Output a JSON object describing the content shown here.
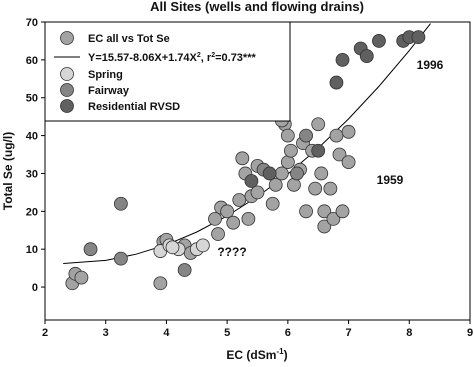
{
  "chart_data": {
    "type": "scatter",
    "title": "All Sites (wells and flowing drains)",
    "xlabel": [
      "EC (dSm",
      "-1",
      ")"
    ],
    "ylabel": "Total Se (ug/l)",
    "xlim": [
      2,
      9
    ],
    "ylim": [
      -8.7,
      70
    ],
    "xticks": [
      2,
      3,
      4,
      5,
      6,
      7,
      8,
      9
    ],
    "yticks": [
      0,
      10,
      20,
      30,
      40,
      50,
      60,
      70
    ],
    "series": [
      {
        "name": "EC all vs Tot Se",
        "color": "#a3a3a3",
        "x": [
          2.45,
          2.5,
          2.6,
          3.9,
          3.95,
          4.0,
          4.3,
          4.4,
          4.8,
          4.85,
          4.9,
          5.0,
          5.1,
          5.2,
          5.25,
          5.3,
          5.35,
          5.4,
          5.5,
          5.5,
          5.75,
          5.8,
          5.9,
          5.95,
          6.0,
          6.0,
          6.05,
          6.1,
          6.2,
          6.25,
          6.3,
          6.4,
          6.45,
          6.5,
          6.55,
          6.6,
          6.6,
          6.7,
          6.75,
          6.8,
          6.85,
          6.9,
          7.0,
          7.0,
          5.9
        ],
        "values": [
          1,
          3.5,
          2.5,
          1,
          12,
          12.5,
          11,
          9,
          18,
          14,
          21,
          20,
          17,
          23,
          34,
          30,
          18,
          24,
          32,
          25,
          22,
          27,
          30,
          43,
          40,
          33,
          36,
          27,
          31,
          38,
          20,
          36,
          26,
          43,
          30,
          16,
          20,
          26,
          18,
          40,
          35,
          20,
          33,
          41,
          44
        ]
      },
      {
        "name": "Spring",
        "color": "#d6d6d6",
        "x": [
          3.9,
          4.05,
          4.2,
          4.5,
          4.6,
          4.1
        ],
        "values": [
          9.5,
          11,
          10,
          10,
          11,
          10.5
        ]
      },
      {
        "name": "Fairway",
        "color": "#858585",
        "x": [
          2.75,
          3.25,
          3.25,
          4.3,
          5.6,
          6.15,
          6.3
        ],
        "values": [
          10,
          22,
          7.5,
          4.5,
          31,
          30,
          40
        ]
      },
      {
        "name": "Residential RVSD",
        "color": "#606060",
        "x": [
          5.4,
          5.7,
          6.5,
          6.8,
          6.9,
          7.2,
          7.3,
          7.5,
          7.9,
          8.0,
          8.15
        ],
        "values": [
          28,
          30,
          36,
          54,
          60,
          63,
          61,
          65,
          65,
          66,
          66
        ]
      }
    ],
    "fit": {
      "label": [
        "Y=15.57-8.06X+1.74X",
        "2",
        ", r",
        "2",
        "=0.73***"
      ],
      "x": [
        2.3,
        3,
        3.5,
        4,
        4.5,
        5,
        5.5,
        6,
        6.5,
        7,
        7.5,
        8,
        8.35
      ],
      "values": [
        6.23,
        7.05,
        8.68,
        11.17,
        14.54,
        18.77,
        23.88,
        29.85,
        36.7,
        44.41,
        53.0,
        62.45,
        69.59
      ]
    },
    "annotations": [
      "1996",
      "1959",
      "????"
    ]
  }
}
